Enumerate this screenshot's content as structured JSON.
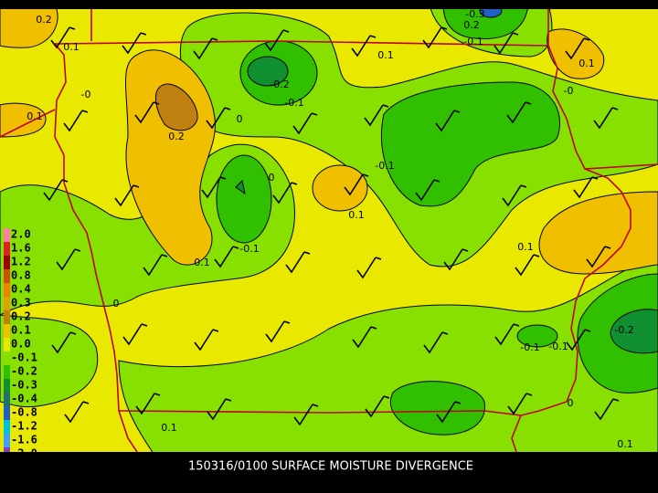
{
  "title": "150316/0100 SURFACE MOISTURE DIVERGENCE",
  "legend": [
    {
      "label": "2.0",
      "color": "#ff7fa0"
    },
    {
      "label": "1.6",
      "color": "#e02020"
    },
    {
      "label": "1.2",
      "color": "#a00000"
    },
    {
      "label": "0.8",
      "color": "#d05000"
    },
    {
      "label": "0.4",
      "color": "#f08000"
    },
    {
      "label": "0.3",
      "color": "#e0a000"
    },
    {
      "label": "0.2",
      "color": "#c08010"
    },
    {
      "label": "0.1",
      "color": "#f0c000"
    },
    {
      "label": "0.0",
      "color": "#e8e800"
    },
    {
      "label": "-0.1",
      "color": "#88e000"
    },
    {
      "label": "-0.2",
      "color": "#30c000"
    },
    {
      "label": "-0.3",
      "color": "#109030"
    },
    {
      "label": "-0.4",
      "color": "#207070"
    },
    {
      "label": "-0.8",
      "color": "#2060c0"
    },
    {
      "label": "-1.2",
      "color": "#00c0e0"
    },
    {
      "label": "-1.6",
      "color": "#40a0ff"
    },
    {
      "label": "-2.0",
      "color": "#8040c0"
    }
  ],
  "contour_labels": [
    "0.2",
    "0.1",
    "-0.3",
    "0.2",
    "-0.1",
    "0.1",
    "0.1",
    "-0.2",
    "-0.1",
    "-0",
    "0.1",
    "0",
    "-0",
    "0.2",
    "-0.1",
    "0",
    "0.1",
    "-0.1",
    "0.1",
    "0.1",
    "0",
    "-0.2",
    "-0.1",
    "-0.1",
    "0",
    "0.1",
    "0.1"
  ]
}
